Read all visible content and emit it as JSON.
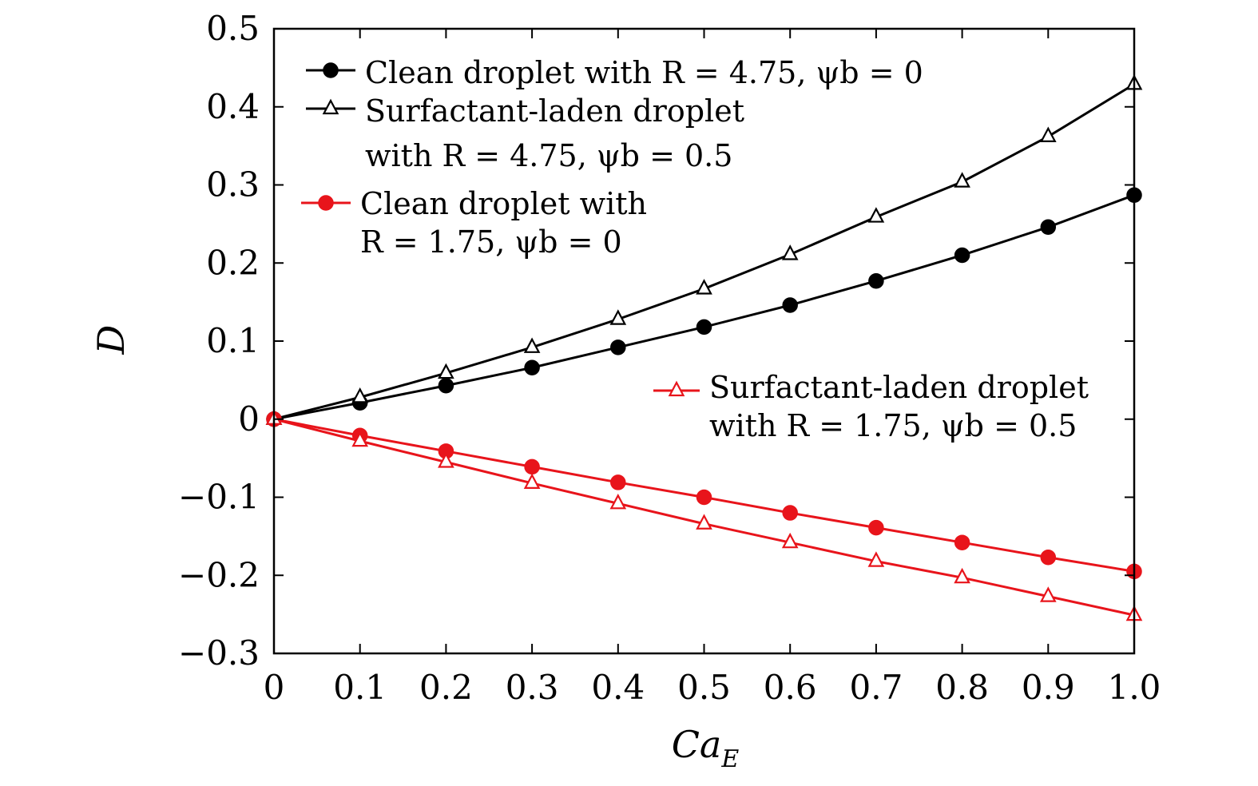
{
  "chart_data": {
    "type": "line",
    "xlabel": "Ca",
    "xlabel_sub": "E",
    "ylabel": "D",
    "xlim": [
      0,
      1.0
    ],
    "ylim": [
      -0.3,
      0.5
    ],
    "x_ticks": [
      "0",
      "0.1",
      "0.2",
      "0.3",
      "0.4",
      "0.5",
      "0.6",
      "0.7",
      "0.8",
      "0.9",
      "1.0"
    ],
    "y_ticks": [
      "−0.3",
      "−0.2",
      "−0.1",
      "0",
      "0.1",
      "0.2",
      "0.3",
      "0.4",
      "0.5"
    ],
    "grid": false,
    "x": [
      0,
      0.1,
      0.2,
      0.3,
      0.4,
      0.5,
      0.6,
      0.7,
      0.8,
      0.9,
      1.0
    ],
    "series": [
      {
        "name": "Clean droplet with R = 4.75, ψb = 0",
        "legend_lines": [
          "Clean droplet with R = 4.75, ψb = 0"
        ],
        "color": "#000000",
        "marker": "circle",
        "values": [
          0,
          0.021,
          0.043,
          0.066,
          0.092,
          0.118,
          0.146,
          0.177,
          0.21,
          0.246,
          0.287
        ]
      },
      {
        "name": "Surfactant-laden droplet with R = 4.75, ψb = 0.5",
        "legend_lines": [
          "Surfactant-laden droplet",
          "with R = 4.75, ψb = 0.5"
        ],
        "color": "#000000",
        "marker": "triangle",
        "values": [
          0,
          0.028,
          0.059,
          0.092,
          0.128,
          0.167,
          0.211,
          0.259,
          0.304,
          0.362,
          0.429
        ]
      },
      {
        "name": "Clean droplet with R = 1.75, ψb = 0",
        "legend_lines": [
          "Clean droplet with",
          "R = 1.75, ψb = 0"
        ],
        "color": "#e8141b",
        "marker": "circle",
        "values": [
          0,
          -0.021,
          -0.041,
          -0.061,
          -0.081,
          -0.1,
          -0.12,
          -0.139,
          -0.158,
          -0.177,
          -0.195
        ]
      },
      {
        "name": "Surfactant-laden droplet with R = 1.75, ψb = 0.5",
        "legend_lines": [
          "Surfactant-laden droplet",
          "with R = 1.75, ψb = 0.5"
        ],
        "color": "#e8141b",
        "marker": "triangle",
        "values": [
          0,
          -0.028,
          -0.055,
          -0.082,
          -0.108,
          -0.134,
          -0.158,
          -0.182,
          -0.203,
          -0.227,
          -0.251
        ]
      }
    ]
  }
}
